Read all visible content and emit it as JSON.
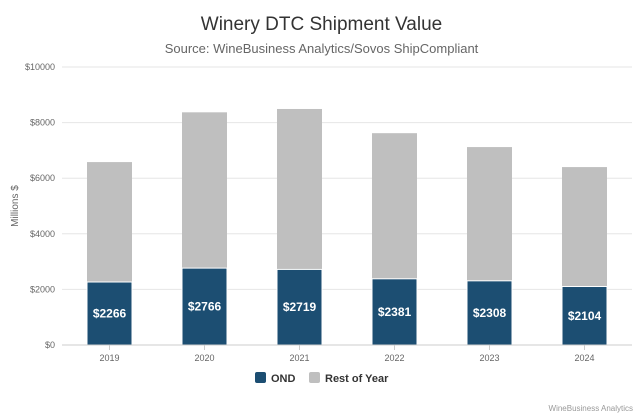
{
  "title": "Winery DTC Shipment Value",
  "subtitle": "Source: WineBusiness Analytics/Sovos ShipCompliant",
  "credit": "WineBusiness Analytics",
  "colors": {
    "ond": "#1c4e72",
    "rest": "#bfbfbf",
    "grid": "#e6e6e6"
  },
  "chart_data": {
    "type": "bar",
    "stacked": true,
    "categories": [
      "2019",
      "2020",
      "2021",
      "2022",
      "2023",
      "2024"
    ],
    "series": [
      {
        "name": "OND",
        "values": [
          2266,
          2766,
          2719,
          2381,
          2308,
          2104
        ],
        "labels": [
          "$2266",
          "$2766",
          "$2719",
          "$2381",
          "$2308",
          "$2104"
        ]
      },
      {
        "name": "Rest of Year",
        "values": [
          4314,
          5604,
          5771,
          5239,
          4812,
          4296
        ]
      }
    ],
    "ylabel": "Millions $",
    "xlabel": "",
    "ylim": [
      0,
      10000
    ],
    "yticks": [
      "$0",
      "$2000",
      "$4000",
      "$6000",
      "$8000",
      "$10000"
    ],
    "grid": true,
    "legend_position": "bottom-center"
  }
}
